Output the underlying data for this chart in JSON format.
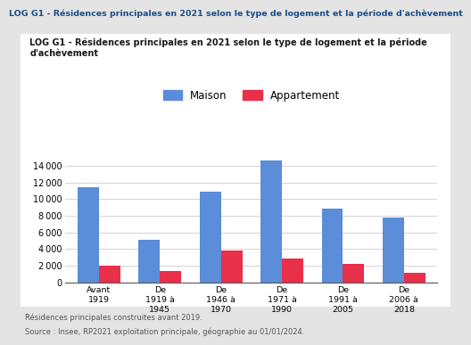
{
  "title_top": "LOG G1 - Résidences principales en 2021 selon le type de logement et la période d'achèvement",
  "title_chart": "LOG G1 - Résidences principales en 2021 selon le type de logement et la période\nd'achèvement",
  "categories": [
    "Avant\n1919",
    "De\n1919 à\n1945",
    "De\n1946 à\n1970",
    "De\n1971 à\n1990",
    "De\n1991 à\n2005",
    "De\n2006 à\n2018"
  ],
  "maison": [
    11400,
    5100,
    10900,
    14700,
    8900,
    7800
  ],
  "appartement": [
    2000,
    1350,
    3850,
    2800,
    2200,
    1150
  ],
  "maison_color": "#5b8dd9",
  "appartement_color": "#e8304a",
  "bar_width": 0.35,
  "ylim": [
    0,
    16000
  ],
  "yticks": [
    0,
    2000,
    4000,
    6000,
    8000,
    10000,
    12000,
    14000
  ],
  "legend_maison": "Maison",
  "legend_appartement": "Appartement",
  "footnote1": "Résidences principales construites avant 2019.",
  "footnote2": "Source : Insee, RP2021 exploitation principale, géographie au 01/01/2024.",
  "bg_outer": "#e4e4e4",
  "bg_inner": "#ffffff",
  "title_top_color": "#1a4f8a",
  "title_chart_color": "#1a1a1a"
}
